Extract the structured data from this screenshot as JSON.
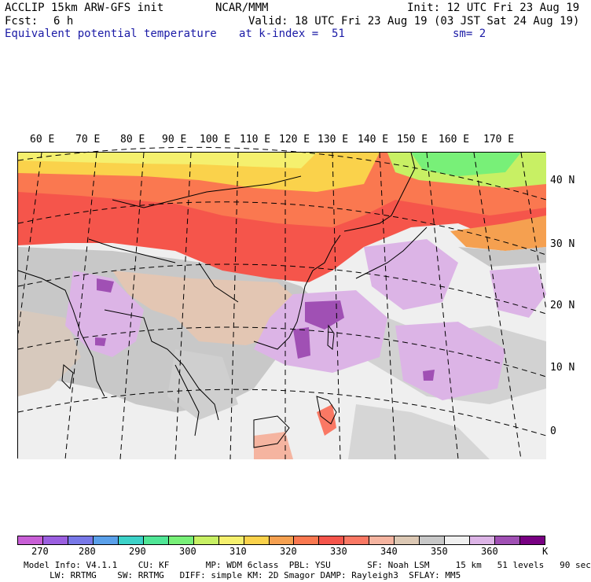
{
  "header": {
    "model": "ACCLIP 15km ARW-GFS init",
    "source": "NCAR/MMM",
    "init": "Init: 12 UTC Fri 23 Aug 19",
    "fcst_label": "Fcst:",
    "fcst_value": "6 h",
    "valid": "Valid: 18 UTC Fri 23 Aug 19 (03 JST Sat 24 Aug 19)",
    "field": "Equivalent potential temperature",
    "level": "at k-index =  51",
    "smoothing": "sm= 2"
  },
  "map": {
    "lon_labels": [
      "60 E",
      "70 E",
      "80 E",
      "90 E",
      "100 E",
      "110 E",
      "120 E",
      "130 E",
      "140 E",
      "150 E",
      "160 E",
      "170 E"
    ],
    "lat_labels": [
      "40 N",
      "30 N",
      "20 N",
      "10 N",
      "0"
    ],
    "region": "Asia / Western Pacific"
  },
  "colorbar": {
    "unit": "K",
    "ticks": [
      "270",
      "280",
      "290",
      "300",
      "310",
      "320",
      "330",
      "340",
      "350",
      "360"
    ],
    "colors": [
      "#c85fd6",
      "#9b5fe0",
      "#7878e8",
      "#5aa0ea",
      "#3cd2c8",
      "#50e696",
      "#78f078",
      "#c8f064",
      "#f5f06e",
      "#fad24b",
      "#f5a050",
      "#fa7850",
      "#f5554b",
      "#fa7864",
      "#f5b4a0",
      "#dcc8b4",
      "#c8c8c8",
      "#f0f0f0",
      "#dcb4e6",
      "#a050b4",
      "#780082"
    ]
  },
  "footer": {
    "line1": "Model Info: V4.1.1    CU: KF       MP: WDM 6class  PBL: YSU       SF: Noah LSM     15 km   51 levels   90 sec",
    "line2": "     LW: RRTMG    SW: RRTMG   DIFF: simple KM: 2D Smagor DAMP: Rayleigh3  SFLAY: MM5"
  }
}
